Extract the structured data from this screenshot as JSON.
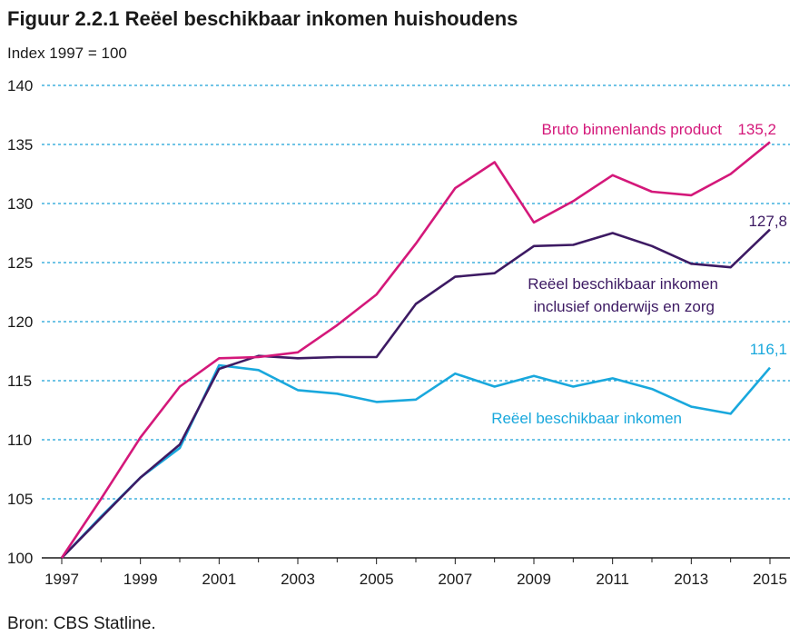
{
  "title": "Figuur 2.2.1 Reëel beschikbaar inkomen huishoudens",
  "subtitle": "Index 1997 = 100",
  "source": "Bron: CBS Statline.",
  "colors": {
    "gdp": "#d4187a",
    "income_incl": "#3d1a63",
    "income": "#19a8dd",
    "grid": "#1aa0d8",
    "axis": "#1a1a1a"
  },
  "chart_data": {
    "type": "line",
    "title": "Figuur 2.2.1 Reëel beschikbaar inkomen huishoudens",
    "ylabel": "Index 1997 = 100",
    "xlabel": "",
    "x": [
      1997,
      1998,
      1999,
      2000,
      2001,
      2002,
      2003,
      2004,
      2005,
      2006,
      2007,
      2008,
      2009,
      2010,
      2011,
      2012,
      2013,
      2014,
      2015
    ],
    "xticks": [
      "1997",
      "1999",
      "2001",
      "2003",
      "2005",
      "2007",
      "2009",
      "2011",
      "2013",
      "2015"
    ],
    "yticks": [
      "100",
      "105",
      "110",
      "115",
      "120",
      "125",
      "130",
      "135",
      "140"
    ],
    "ylim": [
      100,
      140
    ],
    "grid": true,
    "series": [
      {
        "key": "gdp",
        "name": "Bruto binnenlands product",
        "values": [
          100.0,
          105.0,
          110.2,
          114.5,
          116.9,
          117.0,
          117.4,
          119.7,
          122.3,
          126.6,
          131.3,
          133.5,
          128.4,
          130.2,
          132.4,
          131.0,
          130.7,
          132.5,
          135.2
        ],
        "end_label": "135,2"
      },
      {
        "key": "income_incl",
        "name_lines": [
          "Reëel beschikbaar inkomen",
          "inclusief onderwijs en zorg"
        ],
        "values": [
          100.0,
          103.4,
          106.8,
          109.6,
          116.0,
          117.1,
          116.9,
          117.0,
          117.0,
          121.5,
          123.8,
          124.1,
          126.4,
          126.5,
          127.5,
          126.4,
          124.9,
          124.6,
          127.8
        ],
        "end_label": "127,8"
      },
      {
        "key": "income",
        "name": "Reëel beschikbaar inkomen",
        "values": [
          100.0,
          103.5,
          106.8,
          109.3,
          116.3,
          115.9,
          114.2,
          113.9,
          113.2,
          113.4,
          115.6,
          114.5,
          115.4,
          114.5,
          115.2,
          114.3,
          112.8,
          112.2,
          116.1
        ],
        "end_label": "116,1"
      }
    ]
  }
}
